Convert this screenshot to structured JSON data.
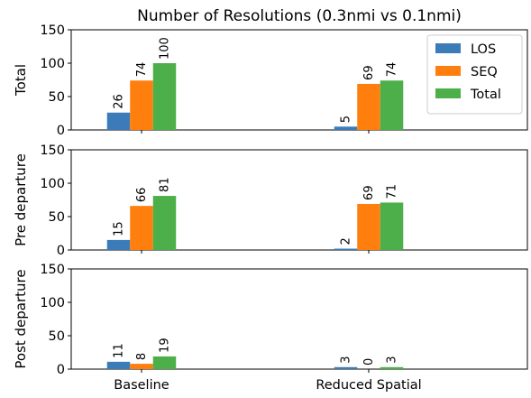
{
  "chart_data": {
    "type": "bar",
    "title": "Number of Resolutions (0.3nmi vs 0.1nmi)",
    "categories": [
      "Baseline",
      "Reduced Spatial"
    ],
    "legend": {
      "position": "top-right",
      "entries": [
        "LOS",
        "SEQ",
        "Total"
      ]
    },
    "colors": {
      "LOS": "#3b7cb8",
      "SEQ": "#ff7f0e",
      "Total": "#4daf4a"
    },
    "ylim": [
      0,
      150
    ],
    "yticks": [
      0,
      50,
      100,
      150
    ],
    "grid": false,
    "panels": [
      {
        "ylabel": "Total",
        "series": [
          {
            "name": "LOS",
            "values": [
              26,
              5
            ]
          },
          {
            "name": "SEQ",
            "values": [
              74,
              69
            ]
          },
          {
            "name": "Total",
            "values": [
              100,
              74
            ]
          }
        ]
      },
      {
        "ylabel": "Pre departure",
        "series": [
          {
            "name": "LOS",
            "values": [
              15,
              2
            ]
          },
          {
            "name": "SEQ",
            "values": [
              66,
              69
            ]
          },
          {
            "name": "Total",
            "values": [
              81,
              71
            ]
          }
        ]
      },
      {
        "ylabel": "Post departure",
        "series": [
          {
            "name": "LOS",
            "values": [
              11,
              3
            ]
          },
          {
            "name": "SEQ",
            "values": [
              8,
              0
            ]
          },
          {
            "name": "Total",
            "values": [
              19,
              3
            ]
          }
        ]
      }
    ]
  }
}
